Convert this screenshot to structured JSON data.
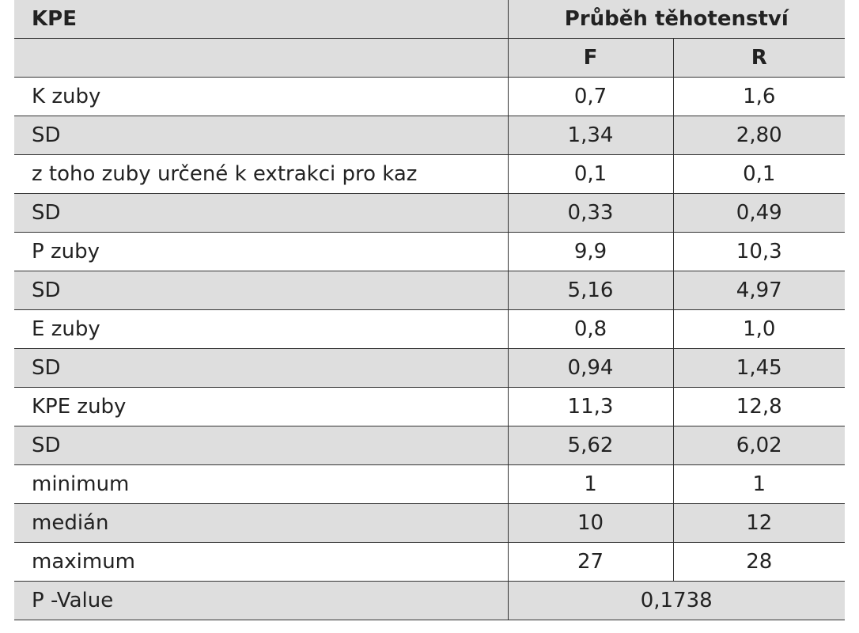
{
  "header": {
    "title": "KPE",
    "group": "Průběh těhotenství",
    "columns": [
      "F",
      "R"
    ]
  },
  "table": {
    "rows": [
      [
        "K zuby",
        "0,7",
        "1,6"
      ],
      [
        "SD",
        "1,34",
        "2,80"
      ],
      [
        "z toho zuby určené k extrakci pro kaz",
        "0,1",
        "0,1"
      ],
      [
        "SD",
        "0,33",
        "0,49"
      ],
      [
        "P zuby",
        "9,9",
        "10,3"
      ],
      [
        "SD",
        "5,16",
        "4,97"
      ],
      [
        "E zuby",
        "0,8",
        "1,0"
      ],
      [
        "SD",
        "0,94",
        "1,45"
      ],
      [
        "KPE zuby",
        "11,3",
        "12,8"
      ],
      [
        "SD",
        "5,62",
        "6,02"
      ],
      [
        "minimum",
        "1",
        "1"
      ],
      [
        "medián",
        "10",
        "12"
      ],
      [
        "maximum",
        "27",
        "28"
      ]
    ],
    "footer": [
      "P -Value",
      "0,1738"
    ]
  }
}
